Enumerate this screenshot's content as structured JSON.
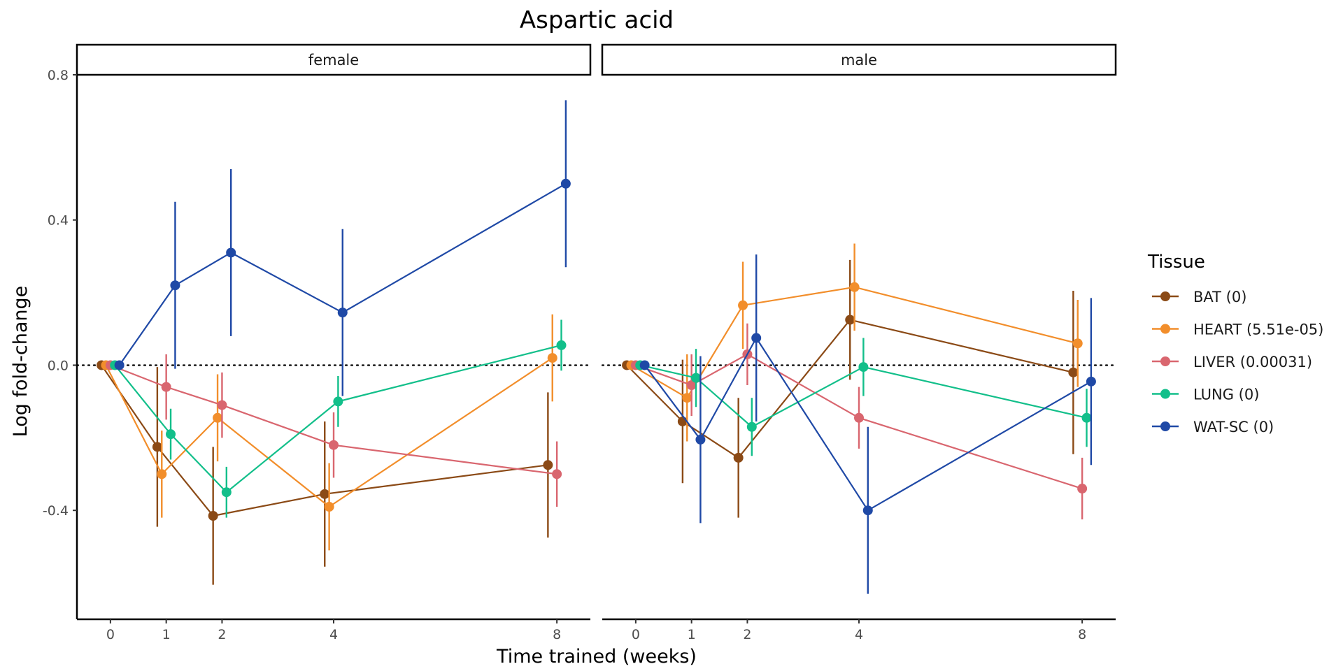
{
  "chart_data": {
    "type": "line",
    "title": "Aspartic acid",
    "xlabel": "Time trained (weeks)",
    "ylabel": "Log fold-change",
    "x_ticks": [
      "0",
      "1",
      "2",
      "4",
      "8"
    ],
    "y_ticks": [
      "-0.4",
      "0.0",
      "0.4",
      "0.8"
    ],
    "ylim": [
      -0.7,
      0.8
    ],
    "xlim": [
      -0.6,
      8.6
    ],
    "reference_line": 0,
    "legend_title": "Tissue",
    "legend_position": "right",
    "panels": [
      {
        "label": "female",
        "series": [
          {
            "name": "BAT (0)",
            "color": "#8B4A16",
            "x": [
              0,
              1,
              2,
              4,
              8
            ],
            "y": [
              0.0,
              -0.225,
              -0.415,
              -0.355,
              -0.275
            ],
            "err_low": [
              0.0,
              -0.445,
              -0.605,
              -0.555,
              -0.475
            ],
            "err_high": [
              0.0,
              -0.005,
              -0.225,
              -0.155,
              -0.075
            ]
          },
          {
            "name": "HEART (5.51e-05)",
            "color": "#F28E2B",
            "x": [
              0,
              1,
              2,
              4,
              8
            ],
            "y": [
              0.0,
              -0.3,
              -0.145,
              -0.39,
              0.02
            ],
            "err_low": [
              0.0,
              -0.42,
              -0.265,
              -0.51,
              -0.1
            ],
            "err_high": [
              0.0,
              -0.18,
              -0.025,
              -0.27,
              0.14
            ]
          },
          {
            "name": "LIVER (0.00031)",
            "color": "#D9666F",
            "x": [
              0,
              1,
              2,
              4,
              8
            ],
            "y": [
              0.0,
              -0.06,
              -0.11,
              -0.22,
              -0.3
            ],
            "err_low": [
              0.0,
              -0.15,
              -0.2,
              -0.31,
              -0.39
            ],
            "err_high": [
              0.0,
              0.03,
              -0.02,
              -0.13,
              -0.21
            ]
          },
          {
            "name": "LUNG (0)",
            "color": "#12BF8A",
            "x": [
              0,
              1,
              2,
              4,
              8
            ],
            "y": [
              0.0,
              -0.19,
              -0.35,
              -0.1,
              0.055
            ],
            "err_low": [
              0.0,
              -0.26,
              -0.42,
              -0.17,
              -0.015
            ],
            "err_high": [
              0.0,
              -0.12,
              -0.28,
              -0.03,
              0.125
            ]
          },
          {
            "name": "WAT-SC (0)",
            "color": "#1F49A6",
            "x": [
              0,
              1,
              2,
              4,
              8
            ],
            "y": [
              0.0,
              0.22,
              0.31,
              0.145,
              0.5
            ],
            "err_low": [
              0.0,
              -0.01,
              0.08,
              -0.085,
              0.27
            ],
            "err_high": [
              0.0,
              0.45,
              0.54,
              0.375,
              0.73
            ]
          }
        ]
      },
      {
        "label": "male",
        "series": [
          {
            "name": "BAT (0)",
            "color": "#8B4A16",
            "x": [
              0,
              1,
              2,
              4,
              8
            ],
            "y": [
              0.0,
              -0.155,
              -0.255,
              0.125,
              -0.02
            ],
            "err_low": [
              0.0,
              -0.325,
              -0.42,
              -0.04,
              -0.245
            ],
            "err_high": [
              0.0,
              0.015,
              -0.09,
              0.29,
              0.205
            ]
          },
          {
            "name": "HEART (5.51e-05)",
            "color": "#F28E2B",
            "x": [
              0,
              1,
              2,
              4,
              8
            ],
            "y": [
              0.0,
              -0.09,
              0.165,
              0.215,
              0.06
            ],
            "err_low": [
              0.0,
              -0.21,
              0.045,
              0.095,
              -0.06
            ],
            "err_high": [
              0.0,
              0.03,
              0.285,
              0.335,
              0.18
            ]
          },
          {
            "name": "LIVER (0.00031)",
            "color": "#D9666F",
            "x": [
              0,
              1,
              2,
              4,
              8
            ],
            "y": [
              0.0,
              -0.055,
              0.03,
              -0.145,
              -0.34
            ],
            "err_low": [
              0.0,
              -0.14,
              -0.055,
              -0.23,
              -0.425
            ],
            "err_high": [
              0.0,
              0.03,
              0.115,
              -0.06,
              -0.255
            ]
          },
          {
            "name": "LUNG (0)",
            "color": "#12BF8A",
            "x": [
              0,
              1,
              2,
              4,
              8
            ],
            "y": [
              0.0,
              -0.035,
              -0.17,
              -0.005,
              -0.145
            ],
            "err_low": [
              0.0,
              -0.115,
              -0.25,
              -0.085,
              -0.225
            ],
            "err_high": [
              0.0,
              0.045,
              -0.09,
              0.075,
              -0.065
            ]
          },
          {
            "name": "WAT-SC (0)",
            "color": "#1F49A6",
            "x": [
              0,
              1,
              2,
              4,
              8
            ],
            "y": [
              0.0,
              -0.205,
              0.075,
              -0.4,
              -0.045
            ],
            "err_low": [
              0.0,
              -0.435,
              -0.155,
              -0.63,
              -0.275
            ],
            "err_high": [
              0.0,
              0.025,
              0.305,
              -0.17,
              0.185
            ]
          }
        ]
      }
    ]
  }
}
